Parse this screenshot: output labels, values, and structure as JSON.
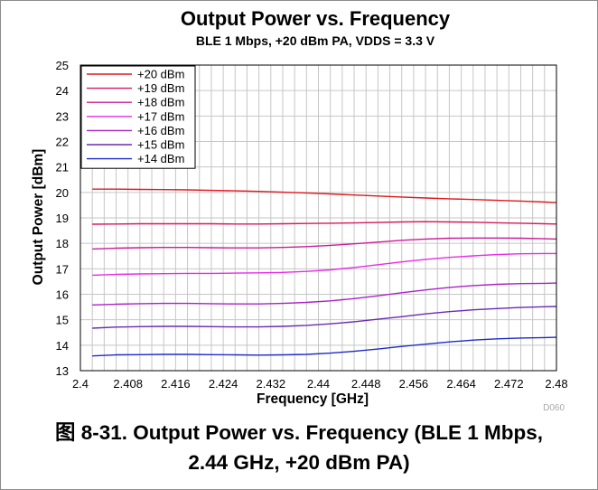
{
  "colors": {
    "grid": "#c6c6c6",
    "axis": "#000000",
    "background": "#ffffff",
    "tag": "#a8a8a8"
  },
  "chart_data": {
    "type": "line",
    "title": "Output Power vs. Frequency",
    "subtitle": "BLE 1 Mbps,  +20 dBm PA, VDDS = 3.3 V",
    "xlabel": "Frequency [GHz]",
    "ylabel": "Output Power [dBm]",
    "xlim": [
      2.4,
      2.48
    ],
    "ylim": [
      13,
      25
    ],
    "x_ticks": [
      "2.4",
      "2.408",
      "2.416",
      "2.424",
      "2.432",
      "2.44",
      "2.448",
      "2.456",
      "2.464",
      "2.472",
      "2.48"
    ],
    "y_ticks": [
      "13",
      "14",
      "15",
      "16",
      "17",
      "18",
      "19",
      "20",
      "21",
      "22",
      "23",
      "24",
      "25"
    ],
    "grid": true,
    "legend_position": "top-left",
    "figure_tag": "D060",
    "x": [
      2.402,
      2.406,
      2.41,
      2.414,
      2.418,
      2.422,
      2.426,
      2.43,
      2.434,
      2.438,
      2.442,
      2.446,
      2.45,
      2.454,
      2.458,
      2.462,
      2.466,
      2.47,
      2.474,
      2.478,
      2.48
    ],
    "series": [
      {
        "name": "+20 dBm",
        "color": "#e0171e",
        "values": [
          20.13,
          20.13,
          20.12,
          20.11,
          20.1,
          20.08,
          20.06,
          20.04,
          20.01,
          19.98,
          19.94,
          19.9,
          19.86,
          19.82,
          19.78,
          19.75,
          19.72,
          19.69,
          19.66,
          19.62,
          19.6
        ]
      },
      {
        "name": "+19 dBm",
        "color": "#d6185f",
        "values": [
          18.75,
          18.76,
          18.77,
          18.77,
          18.77,
          18.77,
          18.76,
          18.76,
          18.77,
          18.78,
          18.79,
          18.8,
          18.82,
          18.84,
          18.85,
          18.84,
          18.83,
          18.81,
          18.79,
          18.77,
          18.76
        ]
      },
      {
        "name": "+18 dBm",
        "color": "#cc1c99",
        "values": [
          17.78,
          17.81,
          17.83,
          17.84,
          17.84,
          17.83,
          17.82,
          17.82,
          17.84,
          17.87,
          17.92,
          17.98,
          18.05,
          18.12,
          18.17,
          18.2,
          18.21,
          18.21,
          18.2,
          18.18,
          18.17
        ]
      },
      {
        "name": "+17 dBm",
        "color": "#e82be8",
        "values": [
          16.75,
          16.78,
          16.8,
          16.81,
          16.82,
          16.82,
          16.83,
          16.84,
          16.86,
          16.9,
          16.96,
          17.05,
          17.16,
          17.27,
          17.37,
          17.45,
          17.51,
          17.56,
          17.59,
          17.6,
          17.6
        ]
      },
      {
        "name": "+16 dBm",
        "color": "#aa22c8",
        "values": [
          15.58,
          15.61,
          15.63,
          15.64,
          15.64,
          15.63,
          15.62,
          15.62,
          15.64,
          15.68,
          15.74,
          15.83,
          15.94,
          16.06,
          16.17,
          16.27,
          16.34,
          16.39,
          16.42,
          16.43,
          16.44
        ]
      },
      {
        "name": "+15 dBm",
        "color": "#6a2ab5",
        "values": [
          14.67,
          14.71,
          14.73,
          14.74,
          14.74,
          14.73,
          14.72,
          14.72,
          14.74,
          14.78,
          14.84,
          14.92,
          15.02,
          15.12,
          15.23,
          15.32,
          15.39,
          15.44,
          15.48,
          15.51,
          15.52
        ]
      },
      {
        "name": "+14 dBm",
        "color": "#1f2bc8",
        "values": [
          13.58,
          13.62,
          13.63,
          13.64,
          13.64,
          13.63,
          13.62,
          13.61,
          13.62,
          13.64,
          13.69,
          13.76,
          13.85,
          13.95,
          14.04,
          14.13,
          14.2,
          14.25,
          14.28,
          14.3,
          14.31
        ]
      }
    ]
  },
  "caption": {
    "line1": "图 8-31. Output Power vs. Frequency (BLE 1 Mbps,",
    "line2": "2.44 GHz, +20 dBm PA)"
  }
}
